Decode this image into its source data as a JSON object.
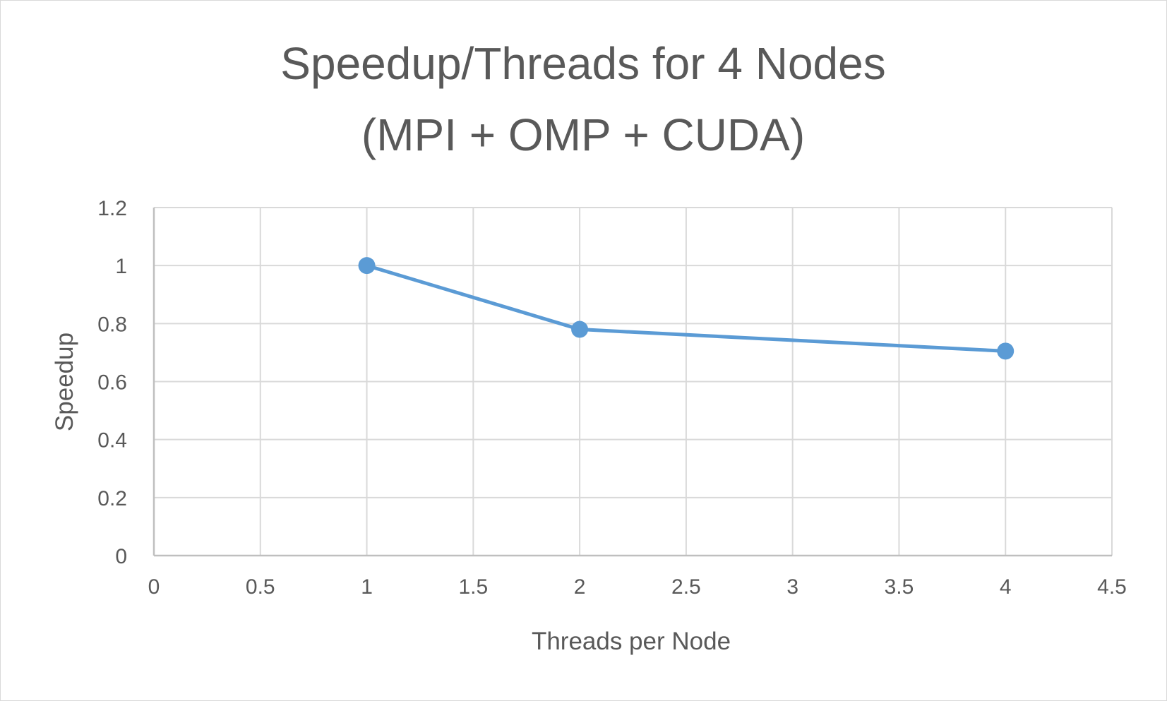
{
  "chart_data": {
    "type": "scatter",
    "title_lines": [
      "Speedup/Threads for 4 Nodes",
      "(MPI + OMP + CUDA)"
    ],
    "xlabel": "Threads per Node",
    "ylabel": "Speedup",
    "xlim": [
      0,
      4.5
    ],
    "ylim": [
      0,
      1.2
    ],
    "x_ticks": [
      "0",
      "0.5",
      "1",
      "1.5",
      "2",
      "2.5",
      "3",
      "3.5",
      "4",
      "4.5"
    ],
    "y_ticks": [
      "0",
      "0.2",
      "0.4",
      "0.6",
      "0.8",
      "1",
      "1.2"
    ],
    "grid": true,
    "legend": "none",
    "series": [
      {
        "color": "#5b9bd5",
        "marker": "circle",
        "line": "straight",
        "points": [
          {
            "x": 1,
            "y": 1.0
          },
          {
            "x": 2,
            "y": 0.78
          },
          {
            "x": 4,
            "y": 0.705
          }
        ]
      }
    ]
  },
  "colors": {
    "series": "#5b9bd5",
    "grid": "#d9d9d9",
    "axis": "#bfbfbf",
    "text": "#595959"
  }
}
